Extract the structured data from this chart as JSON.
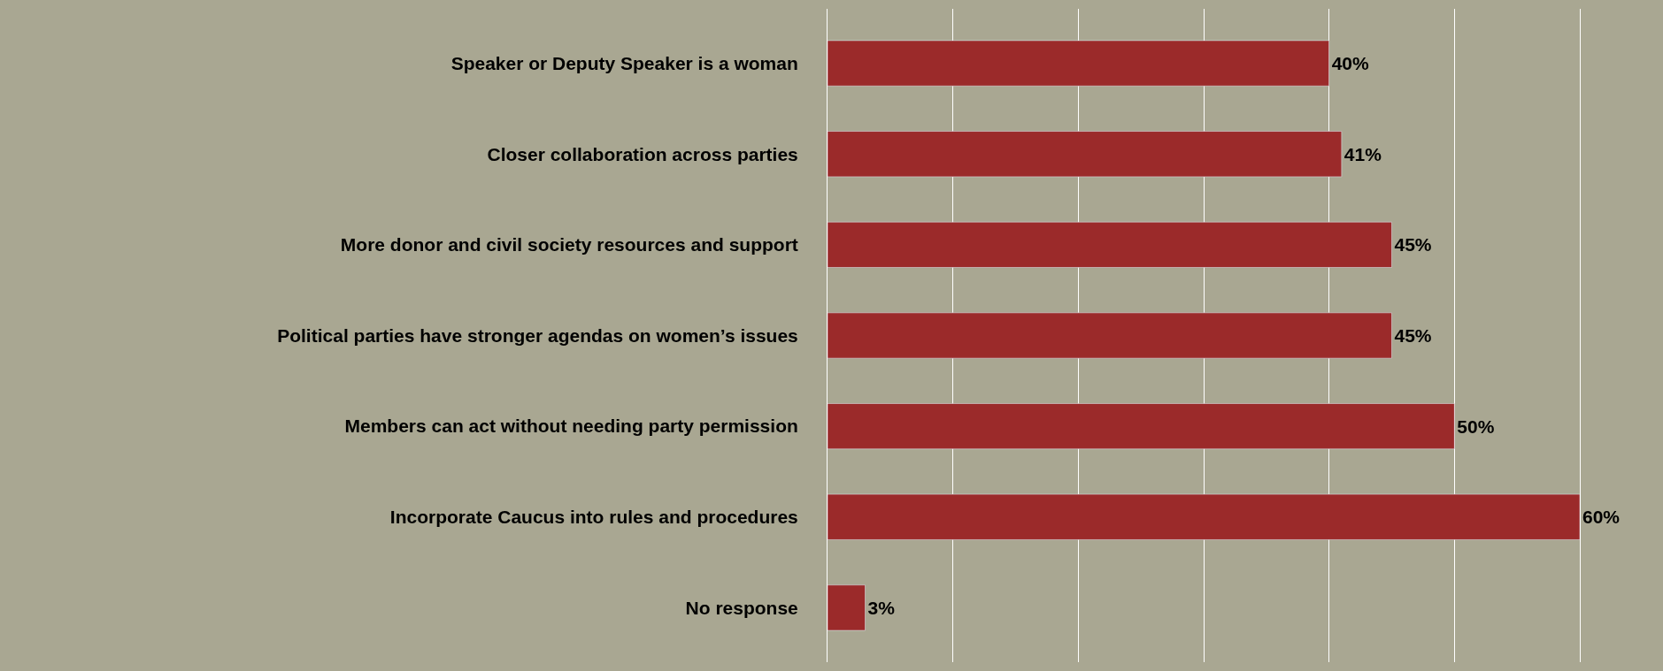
{
  "chart_data": {
    "type": "bar",
    "orientation": "horizontal",
    "categories": [
      "Speaker or Deputy Speaker is a woman",
      "Closer collaboration across parties",
      "More donor and civil society resources and support",
      "Political parties have stronger agendas on women’s issues",
      "Members can act without needing party permission",
      "Incorporate Caucus into rules and procedures",
      "No response"
    ],
    "values": [
      40,
      41,
      45,
      45,
      50,
      60,
      3
    ],
    "value_labels": [
      "40%",
      "41%",
      "45%",
      "45%",
      "50%",
      "60%",
      "3%"
    ],
    "color": "#9b2a2a",
    "xlim": [
      0,
      60
    ],
    "xticks": [
      {
        "value": 10,
        "label": null
      },
      {
        "value": 20,
        "label": null
      },
      {
        "value": 30,
        "label": null
      },
      {
        "value": 40,
        "label": null
      },
      {
        "value": 50,
        "label": null
      }
    ],
    "tick_labels": "y",
    "grid": "x"
  }
}
